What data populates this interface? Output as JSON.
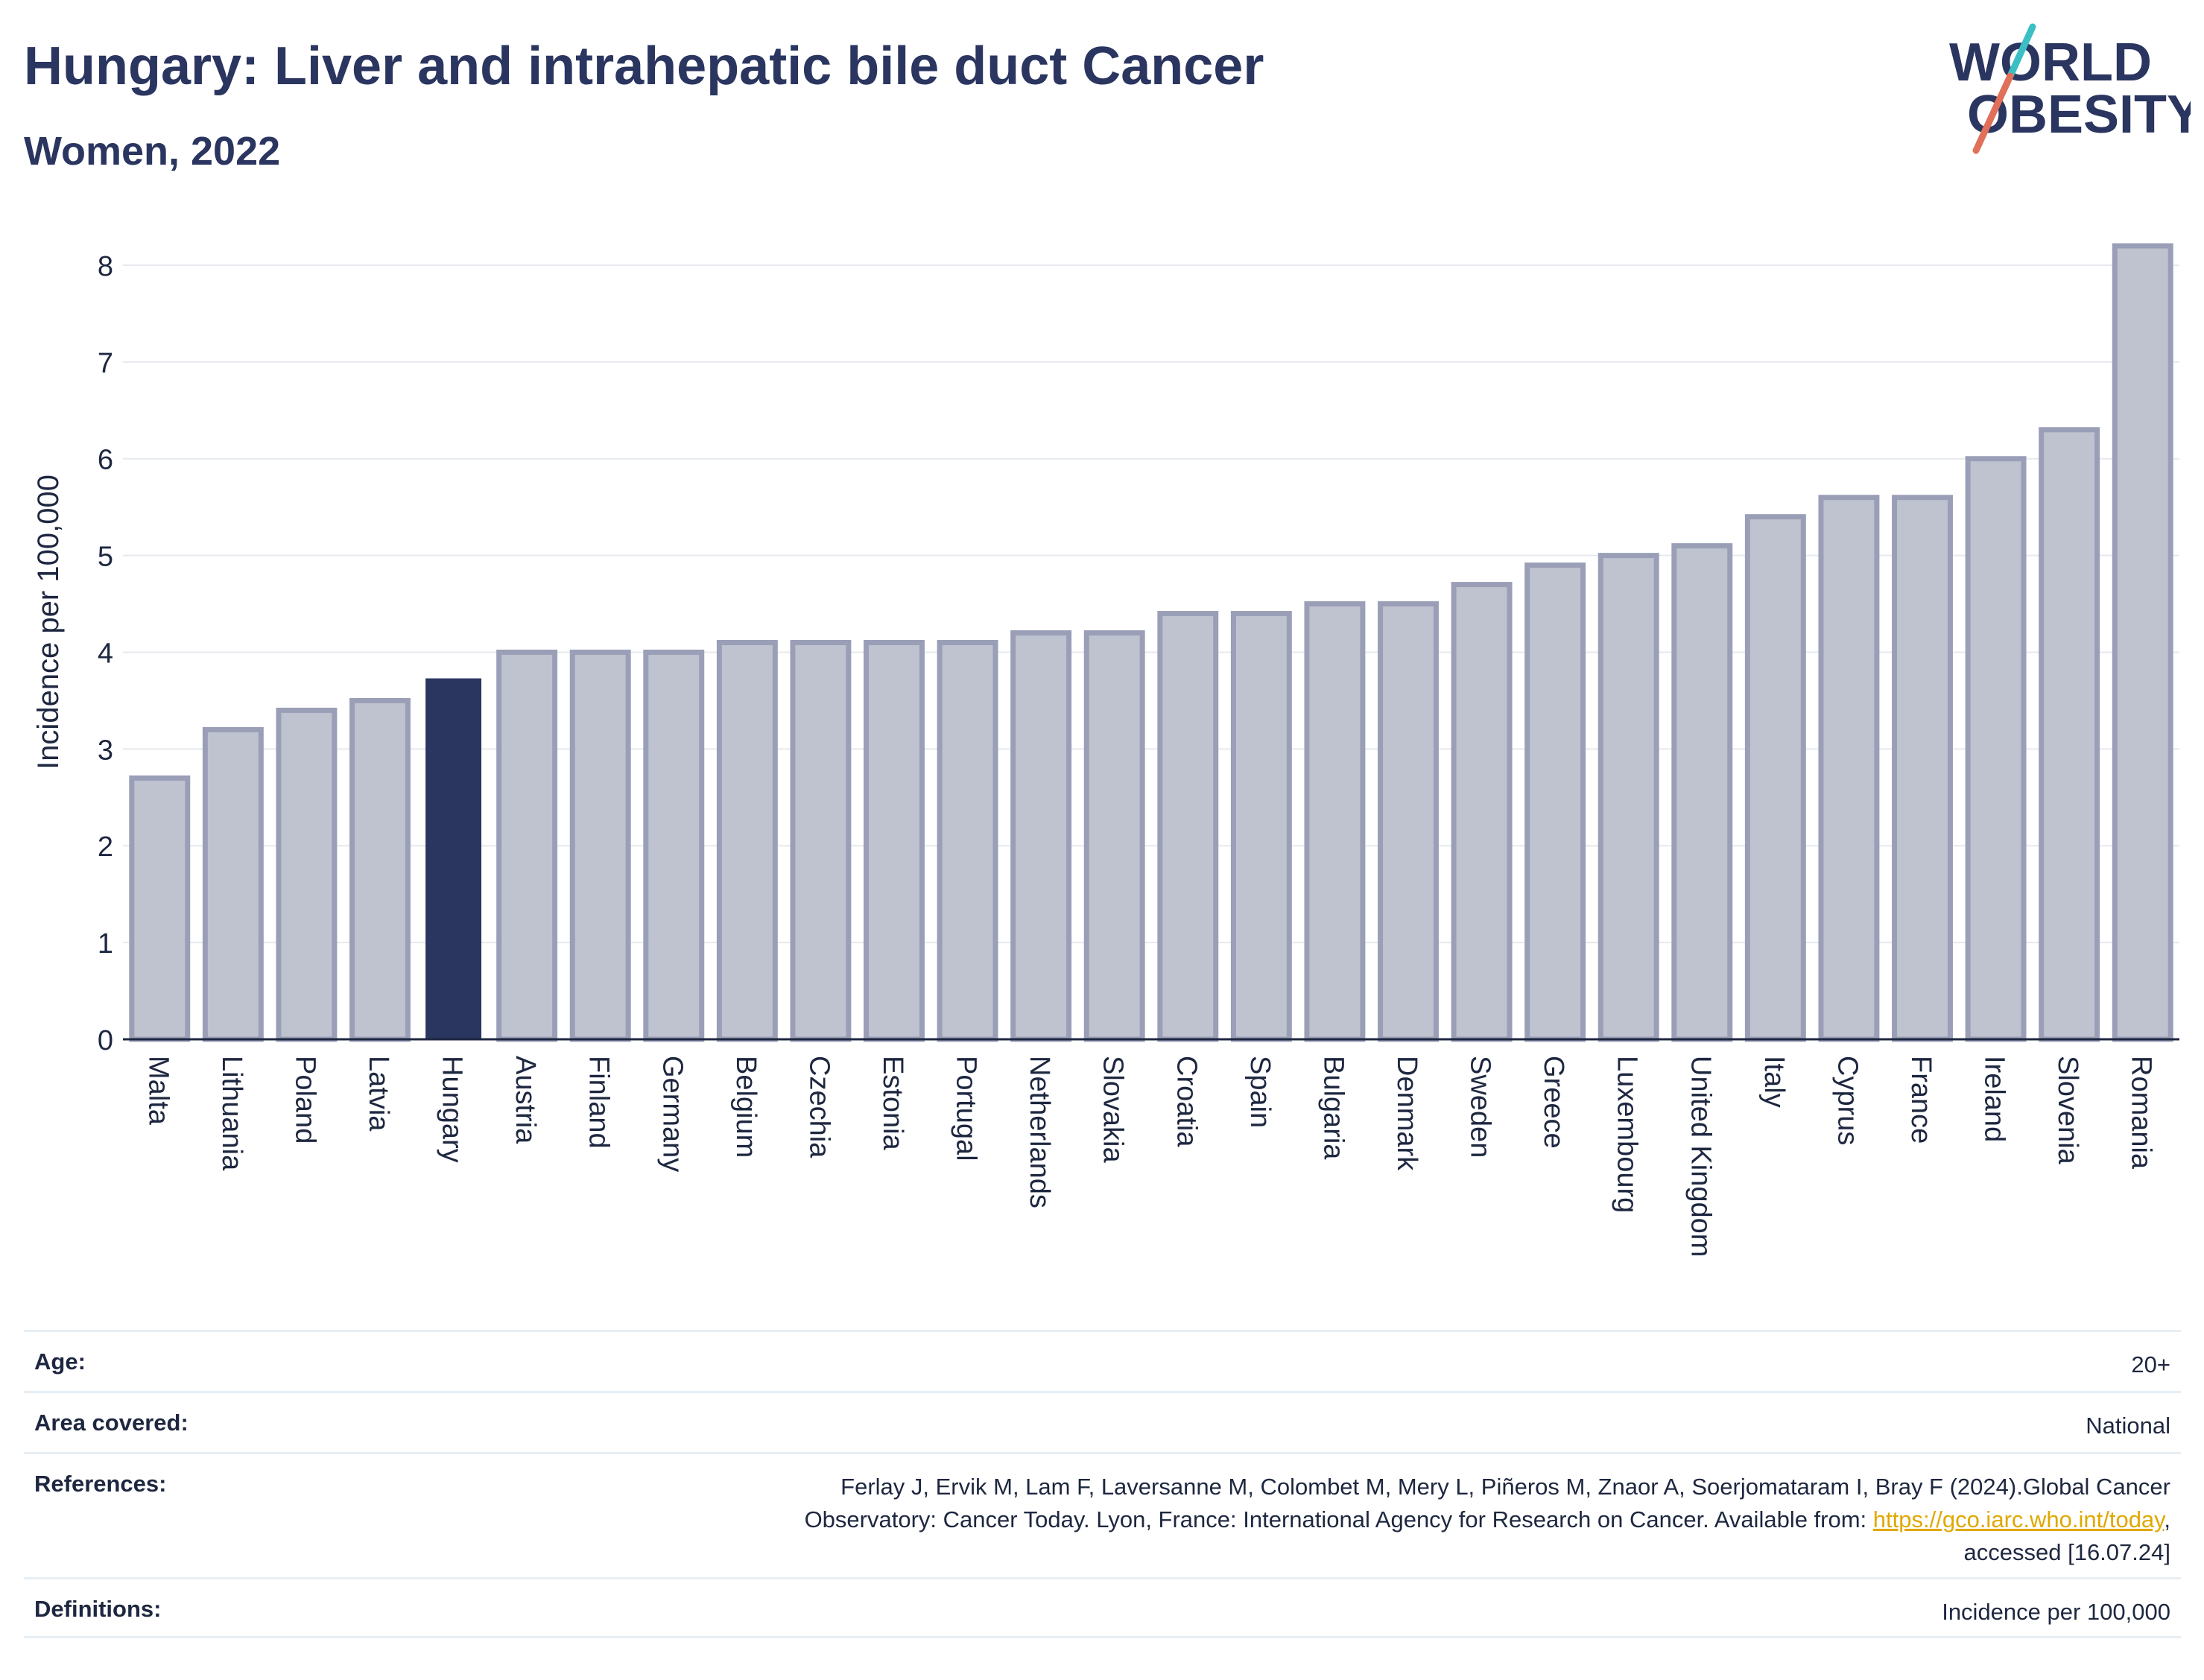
{
  "header": {
    "title": "Hungary: Liver and intrahepatic bile duct Cancer",
    "subtitle": "Women, 2022"
  },
  "logo": {
    "line1": "WORLD",
    "line2": "OBESITY",
    "slash_colors": [
      "#3bbfc4",
      "#e0705a"
    ]
  },
  "colors": {
    "bar": "#bfc2cf",
    "bar_border": "#9a9fb7",
    "highlight": "#2a3560",
    "grid": "#e6e9ee",
    "axis": "#1e2740"
  },
  "chart_data": {
    "type": "bar",
    "ylabel": "Incidence per 100,000",
    "ylim": [
      0,
      8.2
    ],
    "yticks": [
      "0",
      "1",
      "2",
      "3",
      "4",
      "5",
      "6",
      "7",
      "8"
    ],
    "grid": true,
    "highlight": "Hungary",
    "categories": [
      "Malta",
      "Lithuania",
      "Poland",
      "Latvia",
      "Hungary",
      "Austria",
      "Finland",
      "Germany",
      "Belgium",
      "Czechia",
      "Estonia",
      "Portugal",
      "Netherlands",
      "Slovakia",
      "Croatia",
      "Spain",
      "Bulgaria",
      "Denmark",
      "Sweden",
      "Greece",
      "Luxembourg",
      "United Kingdom",
      "Italy",
      "Cyprus",
      "France",
      "Ireland",
      "Slovenia",
      "Romania"
    ],
    "values": [
      2.7,
      3.2,
      3.4,
      3.5,
      3.73,
      4.0,
      4.0,
      4.0,
      4.1,
      4.1,
      4.1,
      4.1,
      4.2,
      4.2,
      4.4,
      4.4,
      4.5,
      4.5,
      4.7,
      4.9,
      5.0,
      5.1,
      5.4,
      5.6,
      5.6,
      6.0,
      6.3,
      8.2
    ]
  },
  "meta": {
    "age_label": "Age:",
    "age_value": "20+",
    "area_label": "Area covered:",
    "area_value": "National",
    "references_label": "References:",
    "references_line1": "Ferlay J, Ervik M, Lam F, Laversanne M, Colombet M, Mery L, Piñeros M, Znaor A, Soerjomataram I, Bray F (2024).Global Cancer",
    "references_line2": "Observatory: Cancer Today. Lyon, France: International Agency for Research on Cancer. Available from: ",
    "references_link": "https://gco.iarc.who.int/today",
    "references_line2_end": ",",
    "references_line3": "accessed [16.07.24]",
    "definitions_label": "Definitions:",
    "definitions_value": "Incidence per 100,000"
  }
}
